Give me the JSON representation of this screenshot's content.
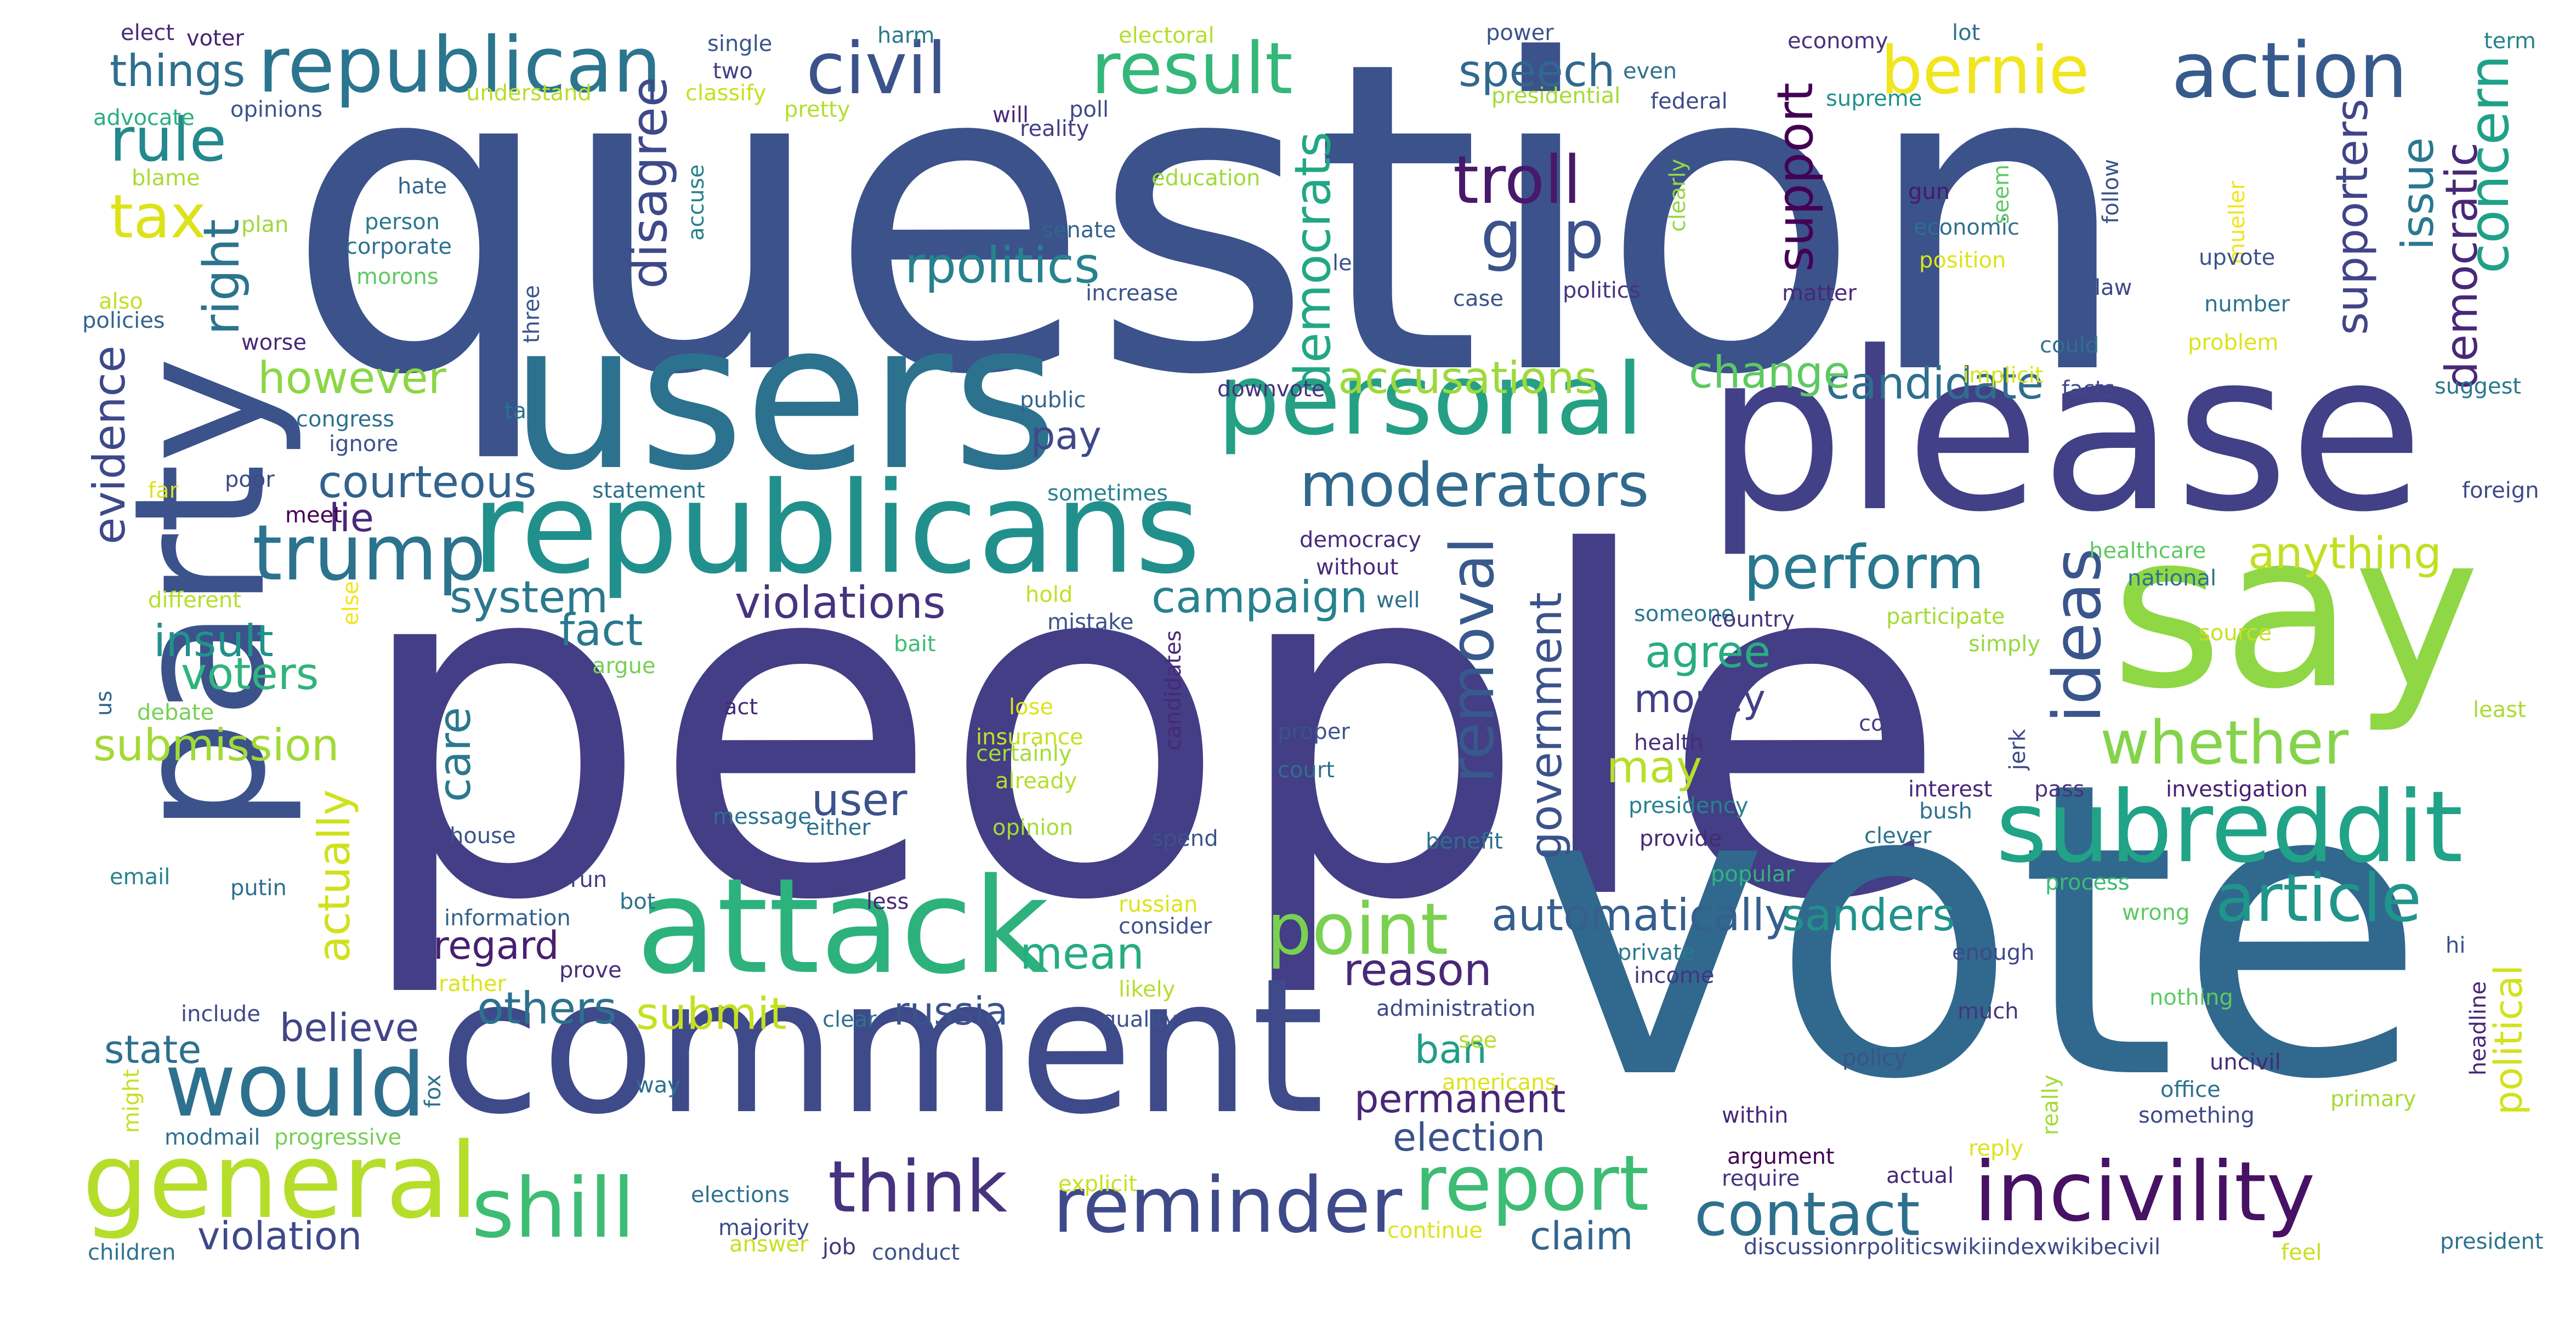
{
  "words": [
    {
      "text": "question",
      "color": "#3b528b",
      "o": "h"
    },
    {
      "text": "people",
      "color": "#433e85",
      "o": "h"
    },
    {
      "text": "vote",
      "color": "#31688e",
      "o": "h"
    },
    {
      "text": "please",
      "color": "#424086",
      "o": "h"
    },
    {
      "text": "users",
      "color": "#2c728e",
      "o": "h"
    },
    {
      "text": "comment",
      "color": "#3e4a89",
      "o": "h"
    },
    {
      "text": "republicans",
      "color": "#21908d",
      "o": "h"
    },
    {
      "text": "say",
      "color": "#8fd744",
      "o": "h"
    },
    {
      "text": "party",
      "color": "#3b528b",
      "o": "v"
    },
    {
      "text": "attack",
      "color": "#2db27d",
      "o": "h"
    },
    {
      "text": "personal",
      "color": "#25a085",
      "o": "h"
    },
    {
      "text": "subreddit",
      "color": "#20a386",
      "o": "h"
    },
    {
      "text": "incivility",
      "color": "#471164",
      "o": "h"
    },
    {
      "text": "reminder",
      "color": "#3e4a89",
      "o": "h"
    },
    {
      "text": "general",
      "color": "#b5de2b",
      "o": "h"
    },
    {
      "text": "would",
      "color": "#2d718e",
      "o": "h"
    },
    {
      "text": "trump",
      "color": "#2c738e",
      "o": "h"
    },
    {
      "text": "republican",
      "color": "#2b758e",
      "o": "h"
    },
    {
      "text": "civil",
      "color": "#3b528b",
      "o": "h"
    },
    {
      "text": "result",
      "color": "#35b779",
      "o": "h"
    },
    {
      "text": "action",
      "color": "#375a8c",
      "o": "h"
    },
    {
      "text": "bernie",
      "color": "#f1e51d",
      "o": "h"
    },
    {
      "text": "shill",
      "color": "#3dbc74",
      "o": "h"
    },
    {
      "text": "think",
      "color": "#46327e",
      "o": "h"
    },
    {
      "text": "report",
      "color": "#3dbc74",
      "o": "h"
    },
    {
      "text": "contact",
      "color": "#2d708e",
      "o": "h"
    },
    {
      "text": "perform",
      "color": "#2a788e",
      "o": "h"
    },
    {
      "text": "article",
      "color": "#1f958b",
      "o": "h"
    },
    {
      "text": "point",
      "color": "#7ad151",
      "o": "h"
    },
    {
      "text": "whether",
      "color": "#84d44b",
      "o": "h"
    },
    {
      "text": "ideas",
      "color": "#39558c",
      "o": "v"
    },
    {
      "text": "removal",
      "color": "#38598c",
      "o": "v"
    },
    {
      "text": "troll",
      "color": "#48186a",
      "o": "h"
    },
    {
      "text": "gop",
      "color": "#3b528b",
      "o": "h"
    },
    {
      "text": "moderators",
      "color": "#30698e",
      "o": "h"
    },
    {
      "text": "concern",
      "color": "#1fa188",
      "o": "v"
    },
    {
      "text": "rule",
      "color": "#23898e",
      "o": "h"
    },
    {
      "text": "tax",
      "color": "#dde318",
      "o": "h"
    },
    {
      "text": "things",
      "color": "#2e6f8e",
      "o": "h"
    },
    {
      "text": "speech",
      "color": "#31688e",
      "o": "h"
    },
    {
      "text": "rpolitics",
      "color": "#26828e",
      "o": "h"
    },
    {
      "text": "democrats",
      "color": "#22a785",
      "o": "v"
    },
    {
      "text": "disagree",
      "color": "#3e4989",
      "o": "v"
    },
    {
      "text": "support",
      "color": "#440154",
      "o": "v"
    },
    {
      "text": "supporters",
      "color": "#414487",
      "o": "v"
    },
    {
      "text": "issue",
      "color": "#2a788e",
      "o": "v"
    },
    {
      "text": "democratic",
      "color": "#482878",
      "o": "v"
    },
    {
      "text": "right",
      "color": "#2c738e",
      "o": "v"
    },
    {
      "text": "evidence",
      "color": "#3e4989",
      "o": "v"
    },
    {
      "text": "however",
      "color": "#8bd646",
      "o": "h"
    },
    {
      "text": "courteous",
      "color": "#33638d",
      "o": "h"
    },
    {
      "text": "lie",
      "color": "#482878",
      "o": "h"
    },
    {
      "text": "accusations",
      "color": "#9dd93b",
      "o": "h"
    },
    {
      "text": "candidate",
      "color": "#2e6e8e",
      "o": "h"
    },
    {
      "text": "change",
      "color": "#5ec962",
      "o": "h"
    },
    {
      "text": "pay",
      "color": "#3e4989",
      "o": "h"
    },
    {
      "text": "system",
      "color": "#2a788e",
      "o": "h"
    },
    {
      "text": "violations",
      "color": "#46337e",
      "o": "h"
    },
    {
      "text": "campaign",
      "color": "#26828e",
      "o": "h"
    },
    {
      "text": "anything",
      "color": "#c2df23",
      "o": "h"
    },
    {
      "text": "fact",
      "color": "#2a788e",
      "o": "h"
    },
    {
      "text": "insult",
      "color": "#21918c",
      "o": "h"
    },
    {
      "text": "voters",
      "color": "#2fb47c",
      "o": "h"
    },
    {
      "text": "agree",
      "color": "#27ad81",
      "o": "h"
    },
    {
      "text": "money",
      "color": "#433e85",
      "o": "h"
    },
    {
      "text": "government",
      "color": "#3b528b",
      "o": "v"
    },
    {
      "text": "care",
      "color": "#2a788e",
      "o": "v"
    },
    {
      "text": "may",
      "color": "#b8de29",
      "o": "h"
    },
    {
      "text": "submission",
      "color": "#a2da37",
      "o": "h"
    },
    {
      "text": "actually",
      "color": "#d0e11c",
      "o": "v"
    },
    {
      "text": "user",
      "color": "#3b528b",
      "o": "h"
    },
    {
      "text": "mean",
      "color": "#25ac82",
      "o": "h"
    },
    {
      "text": "automatically",
      "color": "#355f8d",
      "o": "h"
    },
    {
      "text": "sanders",
      "color": "#21918c",
      "o": "h"
    },
    {
      "text": "regard",
      "color": "#481f70",
      "o": "h"
    },
    {
      "text": "reason",
      "color": "#482878",
      "o": "h"
    },
    {
      "text": "others",
      "color": "#2c728e",
      "o": "h"
    },
    {
      "text": "submit",
      "color": "#c5e021",
      "o": "h"
    },
    {
      "text": "russia",
      "color": "#3b528b",
      "o": "h"
    },
    {
      "text": "believe",
      "color": "#414487",
      "o": "h"
    },
    {
      "text": "state",
      "color": "#2d708e",
      "o": "h"
    },
    {
      "text": "ban",
      "color": "#1f9e89",
      "o": "h"
    },
    {
      "text": "permanent",
      "color": "#482677",
      "o": "h"
    },
    {
      "text": "election",
      "color": "#3b528b",
      "o": "h"
    },
    {
      "text": "violation",
      "color": "#3e4989",
      "o": "h"
    },
    {
      "text": "claim",
      "color": "#32658e",
      "o": "h"
    },
    {
      "text": "political",
      "color": "#d2e21b",
      "o": "v"
    },
    {
      "text": "elect",
      "color": "#472c7a",
      "o": "h"
    },
    {
      "text": "voter",
      "color": "#482173",
      "o": "h"
    },
    {
      "text": "single",
      "color": "#39568c",
      "o": "h"
    },
    {
      "text": "harm",
      "color": "#2a788e",
      "o": "h"
    },
    {
      "text": "electoral",
      "color": "#b5de2b",
      "o": "h"
    },
    {
      "text": "power",
      "color": "#3b528b",
      "o": "h"
    },
    {
      "text": "economy",
      "color": "#46337e",
      "o": "h"
    },
    {
      "text": "lot",
      "color": "#2d708e",
      "o": "h"
    },
    {
      "text": "term",
      "color": "#26828e",
      "o": "h"
    },
    {
      "text": "two",
      "color": "#433e85",
      "o": "h"
    },
    {
      "text": "classify",
      "color": "#c8e020",
      "o": "h"
    },
    {
      "text": "understand",
      "color": "#b8de29",
      "o": "h"
    },
    {
      "text": "advocate",
      "color": "#29af7f",
      "o": "h"
    },
    {
      "text": "opinions",
      "color": "#3b528b",
      "o": "h"
    },
    {
      "text": "pretty",
      "color": "#b5de2b",
      "o": "h"
    },
    {
      "text": "poll",
      "color": "#3e4989",
      "o": "h"
    },
    {
      "text": "will",
      "color": "#482878",
      "o": "h"
    },
    {
      "text": "reality",
      "color": "#433e85",
      "o": "h"
    },
    {
      "text": "presidential",
      "color": "#a5db36",
      "o": "h"
    },
    {
      "text": "federal",
      "color": "#3e4989",
      "o": "h"
    },
    {
      "text": "even",
      "color": "#2d708e",
      "o": "h"
    },
    {
      "text": "supreme",
      "color": "#21918c",
      "o": "h"
    },
    {
      "text": "blame",
      "color": "#a8db34",
      "o": "h"
    },
    {
      "text": "hate",
      "color": "#33638d",
      "o": "h"
    },
    {
      "text": "accuse",
      "color": "#26828e",
      "o": "v"
    },
    {
      "text": "plan",
      "color": "#9dd93b",
      "o": "h"
    },
    {
      "text": "person",
      "color": "#2a788e",
      "o": "h"
    },
    {
      "text": "corporate",
      "color": "#2d708e",
      "o": "h"
    },
    {
      "text": "morons",
      "color": "#5ec962",
      "o": "h"
    },
    {
      "text": "education",
      "color": "#9fda3a",
      "o": "h"
    },
    {
      "text": "senate",
      "color": "#33638d",
      "o": "h"
    },
    {
      "text": "clearly",
      "color": "#95d840",
      "o": "v"
    },
    {
      "text": "gun",
      "color": "#48186a",
      "o": "h"
    },
    {
      "text": "seem",
      "color": "#5ec962",
      "o": "v"
    },
    {
      "text": "economic",
      "color": "#2d708e",
      "o": "h"
    },
    {
      "text": "position",
      "color": "#dde318",
      "o": "h"
    },
    {
      "text": "follow",
      "color": "#3b528b",
      "o": "v"
    },
    {
      "text": "mueller",
      "color": "#f1e51d",
      "o": "v"
    },
    {
      "text": "upvote",
      "color": "#3b528b",
      "o": "h"
    },
    {
      "text": "also",
      "color": "#c2df23",
      "o": "h"
    },
    {
      "text": "policies",
      "color": "#33638d",
      "o": "h"
    },
    {
      "text": "worse",
      "color": "#482878",
      "o": "h"
    },
    {
      "text": "three",
      "color": "#39568c",
      "o": "v"
    },
    {
      "text": "lead",
      "color": "#3b528b",
      "o": "h"
    },
    {
      "text": "increase",
      "color": "#3b528b",
      "o": "h"
    },
    {
      "text": "case",
      "color": "#3b528b",
      "o": "h"
    },
    {
      "text": "politics",
      "color": "#46337e",
      "o": "h"
    },
    {
      "text": "matter",
      "color": "#482878",
      "o": "h"
    },
    {
      "text": "law",
      "color": "#3e4989",
      "o": "h"
    },
    {
      "text": "number",
      "color": "#2c728e",
      "o": "h"
    },
    {
      "text": "could",
      "color": "#2d708e",
      "o": "h"
    },
    {
      "text": "problem",
      "color": "#dde318",
      "o": "h"
    },
    {
      "text": "implicit",
      "color": "#dde318",
      "o": "h"
    },
    {
      "text": "facts",
      "color": "#3e4989",
      "o": "h"
    },
    {
      "text": "suggest",
      "color": "#2a788e",
      "o": "h"
    },
    {
      "text": "congress",
      "color": "#2d708e",
      "o": "h"
    },
    {
      "text": "talk",
      "color": "#2c728e",
      "o": "h"
    },
    {
      "text": "public",
      "color": "#33638d",
      "o": "h"
    },
    {
      "text": "downvote",
      "color": "#46337e",
      "o": "h"
    },
    {
      "text": "ignore",
      "color": "#3b528b",
      "o": "h"
    },
    {
      "text": "far",
      "color": "#dde318",
      "o": "h"
    },
    {
      "text": "poor",
      "color": "#3e4989",
      "o": "h"
    },
    {
      "text": "statement",
      "color": "#2c728e",
      "o": "h"
    },
    {
      "text": "sometimes",
      "color": "#26828e",
      "o": "h"
    },
    {
      "text": "meet",
      "color": "#440154",
      "o": "h"
    },
    {
      "text": "democracy",
      "color": "#472c7a",
      "o": "h"
    },
    {
      "text": "without",
      "color": "#482878",
      "o": "h"
    },
    {
      "text": "foreign",
      "color": "#3e4989",
      "o": "h"
    },
    {
      "text": "healthcare",
      "color": "#5ec962",
      "o": "h"
    },
    {
      "text": "national",
      "color": "#2d708e",
      "o": "h"
    },
    {
      "text": "different",
      "color": "#b5de2b",
      "o": "h"
    },
    {
      "text": "else",
      "color": "#f1e51d",
      "o": "v"
    },
    {
      "text": "hold",
      "color": "#c2df23",
      "o": "h"
    },
    {
      "text": "mistake",
      "color": "#3b528b",
      "o": "h"
    },
    {
      "text": "well",
      "color": "#2d708e",
      "o": "h"
    },
    {
      "text": "someone",
      "color": "#2a788e",
      "o": "h"
    },
    {
      "text": "country",
      "color": "#46337e",
      "o": "h"
    },
    {
      "text": "participate",
      "color": "#a5db36",
      "o": "h"
    },
    {
      "text": "source",
      "color": "#c8e020",
      "o": "h"
    },
    {
      "text": "bait",
      "color": "#3dbc74",
      "o": "h"
    },
    {
      "text": "candidates",
      "color": "#482878",
      "o": "v"
    },
    {
      "text": "simply",
      "color": "#95d840",
      "o": "h"
    },
    {
      "text": "argue",
      "color": "#75d054",
      "o": "h"
    },
    {
      "text": "us",
      "color": "#33638d",
      "o": "v"
    },
    {
      "text": "act",
      "color": "#482878",
      "o": "h"
    },
    {
      "text": "lose",
      "color": "#dde318",
      "o": "h"
    },
    {
      "text": "insurance",
      "color": "#c8e020",
      "o": "h"
    },
    {
      "text": "certainly",
      "color": "#a5db36",
      "o": "h"
    },
    {
      "text": "proper",
      "color": "#3b528b",
      "o": "h"
    },
    {
      "text": "cost",
      "color": "#433e85",
      "o": "h"
    },
    {
      "text": "least",
      "color": "#a8db34",
      "o": "h"
    },
    {
      "text": "debate",
      "color": "#75d054",
      "o": "h"
    },
    {
      "text": "already",
      "color": "#b5de2b",
      "o": "h"
    },
    {
      "text": "court",
      "color": "#2d708e",
      "o": "h"
    },
    {
      "text": "health",
      "color": "#472c7a",
      "o": "h"
    },
    {
      "text": "jerk",
      "color": "#3e4989",
      "o": "v"
    },
    {
      "text": "interest",
      "color": "#482878",
      "o": "h"
    },
    {
      "text": "pass",
      "color": "#46337e",
      "o": "h"
    },
    {
      "text": "investigation",
      "color": "#482173",
      "o": "h"
    },
    {
      "text": "bush",
      "color": "#2c728e",
      "o": "h"
    },
    {
      "text": "presidency",
      "color": "#26828e",
      "o": "h"
    },
    {
      "text": "message",
      "color": "#2c728e",
      "o": "h"
    },
    {
      "text": "either",
      "color": "#2d708e",
      "o": "h"
    },
    {
      "text": "opinion",
      "color": "#a5db36",
      "o": "h"
    },
    {
      "text": "spend",
      "color": "#3b528b",
      "o": "h"
    },
    {
      "text": "benefit",
      "color": "#2d708e",
      "o": "h"
    },
    {
      "text": "provide",
      "color": "#482878",
      "o": "h"
    },
    {
      "text": "clever",
      "color": "#2d708e",
      "o": "h"
    },
    {
      "text": "house",
      "color": "#3b528b",
      "o": "h"
    },
    {
      "text": "email",
      "color": "#26828e",
      "o": "h"
    },
    {
      "text": "run",
      "color": "#433e85",
      "o": "h"
    },
    {
      "text": "popular",
      "color": "#2fb47c",
      "o": "h"
    },
    {
      "text": "process",
      "color": "#3dbc74",
      "o": "h"
    },
    {
      "text": "putin",
      "color": "#2d708e",
      "o": "h"
    },
    {
      "text": "bot",
      "color": "#2c728e",
      "o": "h"
    },
    {
      "text": "less",
      "color": "#482878",
      "o": "h"
    },
    {
      "text": "russian",
      "color": "#dde318",
      "o": "h"
    },
    {
      "text": "information",
      "color": "#33638d",
      "o": "h"
    },
    {
      "text": "consider",
      "color": "#3b528b",
      "o": "h"
    },
    {
      "text": "wrong",
      "color": "#5ec962",
      "o": "h"
    },
    {
      "text": "hi",
      "color": "#3b528b",
      "o": "h"
    },
    {
      "text": "prove",
      "color": "#472c7a",
      "o": "h"
    },
    {
      "text": "likely",
      "color": "#b5de2b",
      "o": "h"
    },
    {
      "text": "private",
      "color": "#2a788e",
      "o": "h"
    },
    {
      "text": "enough",
      "color": "#3e4989",
      "o": "h"
    },
    {
      "text": "rather",
      "color": "#dde318",
      "o": "h"
    },
    {
      "text": "income",
      "color": "#46337e",
      "o": "h"
    },
    {
      "text": "include",
      "color": "#3e4989",
      "o": "h"
    },
    {
      "text": "clear",
      "color": "#2c728e",
      "o": "h"
    },
    {
      "text": "quality",
      "color": "#3b528b",
      "o": "h"
    },
    {
      "text": "administration",
      "color": "#3e4989",
      "o": "h"
    },
    {
      "text": "much",
      "color": "#46337e",
      "o": "h"
    },
    {
      "text": "nothing",
      "color": "#5ec962",
      "o": "h"
    },
    {
      "text": "headline",
      "color": "#482878",
      "o": "v"
    },
    {
      "text": "see",
      "color": "#b5de2b",
      "o": "h"
    },
    {
      "text": "might",
      "color": "#c8e020",
      "o": "v"
    },
    {
      "text": "way",
      "color": "#2d708e",
      "o": "h"
    },
    {
      "text": "americans",
      "color": "#dde318",
      "o": "h"
    },
    {
      "text": "policy",
      "color": "#3b528b",
      "o": "h"
    },
    {
      "text": "uncivil",
      "color": "#482878",
      "o": "h"
    },
    {
      "text": "office",
      "color": "#2d708e",
      "o": "h"
    },
    {
      "text": "really",
      "color": "#a5db36",
      "o": "v"
    },
    {
      "text": "primary",
      "color": "#a8db34",
      "o": "h"
    },
    {
      "text": "fox",
      "color": "#2c728e",
      "o": "v"
    },
    {
      "text": "modmail",
      "color": "#2d708e",
      "o": "h"
    },
    {
      "text": "progressive",
      "color": "#75d054",
      "o": "h"
    },
    {
      "text": "within",
      "color": "#482878",
      "o": "h"
    },
    {
      "text": "something",
      "color": "#3e4989",
      "o": "h"
    },
    {
      "text": "argument",
      "color": "#440154",
      "o": "h"
    },
    {
      "text": "reply",
      "color": "#dde318",
      "o": "h"
    },
    {
      "text": "explicit",
      "color": "#c8e020",
      "o": "h"
    },
    {
      "text": "require",
      "color": "#46337e",
      "o": "h"
    },
    {
      "text": "actual",
      "color": "#482878",
      "o": "h"
    },
    {
      "text": "elections",
      "color": "#2d708e",
      "o": "h"
    },
    {
      "text": "majority",
      "color": "#3e4989",
      "o": "h"
    },
    {
      "text": "continue",
      "color": "#dde318",
      "o": "h"
    },
    {
      "text": "children",
      "color": "#2c728e",
      "o": "h"
    },
    {
      "text": "answer",
      "color": "#c8e020",
      "o": "h"
    },
    {
      "text": "job",
      "color": "#46337e",
      "o": "h"
    },
    {
      "text": "conduct",
      "color": "#3b528b",
      "o": "h"
    },
    {
      "text": "discussionrpoliticswikiindexwikibecivil",
      "color": "#3e4989",
      "o": "h"
    },
    {
      "text": "feel",
      "color": "#c8e020",
      "o": "h"
    },
    {
      "text": "president",
      "color": "#2c728e",
      "o": "h"
    }
  ]
}
